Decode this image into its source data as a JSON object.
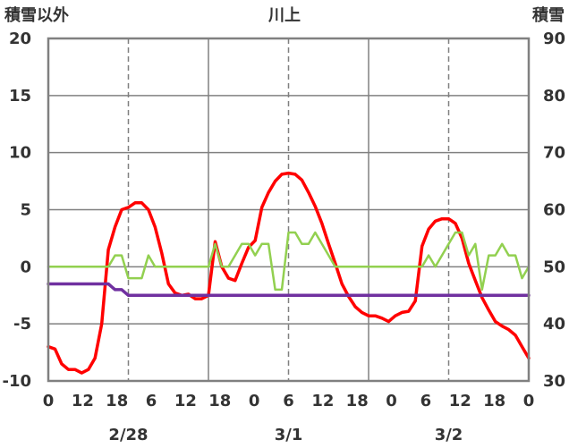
{
  "chart_data": {
    "type": "line",
    "title": "川上",
    "left_axis_label": "積雪以外",
    "right_axis_label": "積雪",
    "ylim_left": [
      -10,
      20
    ],
    "ylim_right": [
      30,
      90
    ],
    "yticks_left": [
      "20",
      "15",
      "10",
      "5",
      "0",
      "-5",
      "-10"
    ],
    "yticks_right": [
      "90",
      "80",
      "70",
      "60",
      "50",
      "40",
      "30"
    ],
    "xlim_hours": [
      0,
      72
    ],
    "xticks": [
      "0",
      "12",
      "18",
      "6",
      "12",
      "18",
      "0",
      "6",
      "12",
      "18",
      "0",
      "6",
      "12",
      "18",
      "0"
    ],
    "date_labels": [
      "2/28",
      "3/1",
      "3/2"
    ],
    "grid": "dashed at 12h, solid at day boundaries",
    "series": [
      {
        "color": "#ff0000",
        "axis": "left",
        "x": [
          0,
          1,
          2,
          3,
          4,
          5,
          6,
          7,
          8,
          9,
          10,
          11,
          12,
          13,
          14,
          15,
          16,
          17,
          18,
          19,
          20,
          21,
          22,
          23,
          24,
          25,
          26,
          27,
          28,
          29,
          30,
          31,
          32,
          33,
          34,
          35,
          36,
          37,
          38,
          39,
          40,
          41,
          42,
          43,
          44,
          45,
          46,
          47,
          48,
          49,
          50,
          51,
          52,
          53,
          54,
          55,
          56,
          57,
          58,
          59,
          60,
          61,
          62,
          63,
          64,
          65,
          66,
          67,
          68,
          69,
          70,
          71,
          72
        ],
        "values": [
          -7.0,
          -7.2,
          -8.5,
          -9.0,
          -9.0,
          -9.3,
          -9.0,
          -8.0,
          -5.0,
          1.5,
          3.5,
          5.0,
          5.2,
          5.6,
          5.6,
          5.0,
          3.5,
          1.2,
          -1.5,
          -2.3,
          -2.5,
          -2.4,
          -2.8,
          -2.8,
          -2.5,
          2.2,
          0.0,
          -1.0,
          -1.2,
          0.3,
          1.7,
          2.3,
          5.2,
          6.5,
          7.5,
          8.1,
          8.2,
          8.1,
          7.6,
          6.5,
          5.3,
          3.8,
          2.0,
          0.3,
          -1.5,
          -2.6,
          -3.5,
          -4.0,
          -4.3,
          -4.3,
          -4.5,
          -4.8,
          -4.3,
          -4.0,
          -3.9,
          -3.0,
          1.8,
          3.3,
          4.0,
          4.2,
          4.2,
          3.8,
          2.5,
          0.3,
          -1.2,
          -2.7,
          -3.8,
          -4.8,
          -5.2,
          -5.5,
          -6.0,
          -7.0,
          -8.0
        ]
      },
      {
        "color": "#92d050",
        "axis": "left",
        "x": [
          0,
          1,
          2,
          3,
          4,
          5,
          6,
          7,
          8,
          9,
          10,
          11,
          12,
          13,
          14,
          15,
          16,
          17,
          18,
          19,
          20,
          21,
          22,
          23,
          24,
          25,
          26,
          27,
          28,
          29,
          30,
          31,
          32,
          33,
          34,
          35,
          36,
          37,
          38,
          39,
          40,
          41,
          42,
          43,
          44,
          45,
          46,
          47,
          48,
          49,
          50,
          51,
          52,
          53,
          54,
          55,
          56,
          57,
          58,
          59,
          60,
          61,
          62,
          63,
          64,
          65,
          66,
          67,
          68,
          69,
          70,
          71,
          72
        ],
        "values": [
          0,
          0,
          0,
          0,
          0,
          0,
          0,
          0,
          0,
          0,
          1,
          1,
          -1,
          -1,
          -1,
          1,
          0,
          0,
          0,
          0,
          0,
          0,
          0,
          0,
          0,
          2,
          0,
          0,
          1,
          2,
          2,
          1,
          2,
          2,
          -2,
          -2,
          3,
          3,
          2,
          2,
          3,
          2,
          1,
          0,
          0,
          0,
          0,
          0,
          0,
          0,
          0,
          0,
          0,
          0,
          0,
          0,
          0,
          1,
          0,
          1,
          2,
          3,
          3,
          1,
          2,
          -2,
          1,
          1,
          2,
          1,
          1,
          -1,
          0
        ]
      },
      {
        "color": "#7030a0",
        "axis": "right",
        "x": [
          0,
          1,
          2,
          3,
          4,
          5,
          6,
          7,
          8,
          9,
          10,
          11,
          12,
          13,
          14,
          15,
          16,
          17,
          18,
          19,
          20,
          21,
          22,
          23,
          24,
          25,
          26,
          27,
          28,
          29,
          30,
          31,
          32,
          33,
          34,
          35,
          36,
          37,
          38,
          39,
          40,
          41,
          42,
          43,
          44,
          45,
          46,
          47,
          48,
          49,
          50,
          51,
          52,
          53,
          54,
          55,
          56,
          57,
          58,
          59,
          60,
          61,
          62,
          63,
          64,
          65,
          66,
          67,
          68,
          69,
          70,
          71,
          72
        ],
        "values": [
          47,
          47,
          47,
          47,
          47,
          47,
          47,
          47,
          47,
          47,
          46,
          46,
          45,
          45,
          45,
          45,
          45,
          45,
          45,
          45,
          45,
          45,
          45,
          45,
          45,
          45,
          45,
          45,
          45,
          45,
          45,
          45,
          45,
          45,
          45,
          45,
          45,
          45,
          45,
          45,
          45,
          45,
          45,
          45,
          45,
          45,
          45,
          45,
          45,
          45,
          45,
          45,
          45,
          45,
          45,
          45,
          45,
          45,
          45,
          45,
          45,
          45,
          45,
          45,
          45,
          45,
          45,
          45,
          45,
          45,
          45,
          45,
          45
        ]
      }
    ]
  }
}
